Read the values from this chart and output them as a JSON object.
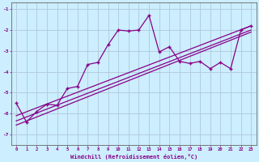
{
  "xlabel": "Windchill (Refroidissement éolien,°C)",
  "background_color": "#cceeff",
  "grid_color": "#b0c8d8",
  "line_color": "#880088",
  "xlim": [
    -0.5,
    23.5
  ],
  "ylim": [
    -7.5,
    -0.7
  ],
  "xticks": [
    0,
    1,
    2,
    3,
    4,
    5,
    6,
    7,
    8,
    9,
    10,
    11,
    12,
    13,
    14,
    15,
    16,
    17,
    18,
    19,
    20,
    21,
    22,
    23
  ],
  "yticks": [
    -7,
    -6,
    -5,
    -4,
    -3,
    -2,
    -1
  ],
  "series1_x": [
    0,
    1,
    2,
    3,
    4,
    5,
    6,
    7,
    8,
    9,
    10,
    11,
    12,
    13,
    14,
    15,
    16,
    17,
    18,
    19,
    20,
    21,
    22,
    23
  ],
  "series1_y": [
    -5.5,
    -6.4,
    -5.9,
    -5.55,
    -5.6,
    -4.8,
    -4.7,
    -3.65,
    -3.55,
    -2.7,
    -2.0,
    -2.05,
    -2.0,
    -1.3,
    -3.05,
    -2.8,
    -3.5,
    -3.6,
    -3.5,
    -3.85,
    -3.55,
    -3.85,
    -2.0,
    -1.8
  ],
  "line1_x": [
    0,
    23
  ],
  "line1_y": [
    -6.1,
    -1.8
  ],
  "line2_x": [
    0,
    23
  ],
  "line2_y": [
    -6.35,
    -2.0
  ],
  "line3_x": [
    0,
    23
  ],
  "line3_y": [
    -6.55,
    -2.1
  ]
}
